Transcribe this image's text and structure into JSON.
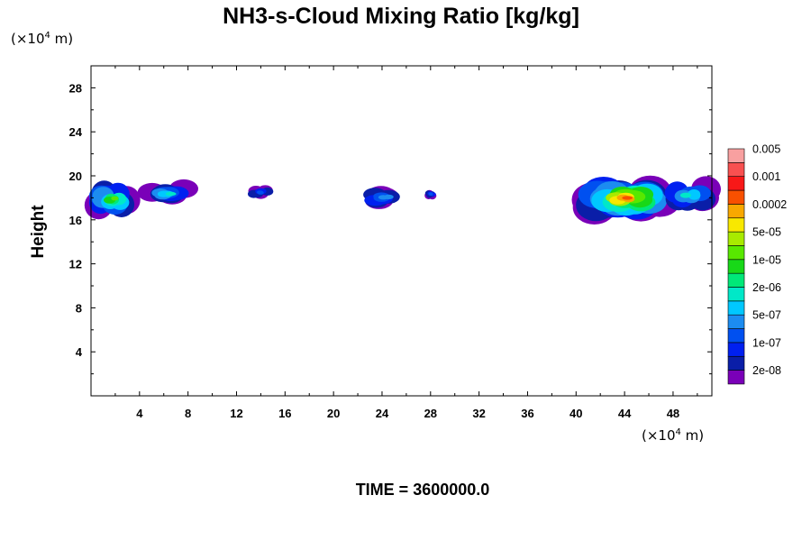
{
  "chart_data": {
    "type": "heatmap",
    "title": "NH3-s-Cloud Mixing Ratio [kg/kg]",
    "ylabel": "Height",
    "y_unit": {
      "prefix": "(×10",
      "exp": "4",
      "suffix": " m)"
    },
    "x_unit": {
      "prefix": "(×10",
      "exp": "4",
      "suffix": " m)"
    },
    "xlim": [
      0,
      51.2
    ],
    "ylim": [
      0,
      30
    ],
    "x_ticks": [
      4,
      8,
      12,
      16,
      20,
      24,
      28,
      32,
      36,
      40,
      44,
      48
    ],
    "y_ticks": [
      4,
      8,
      12,
      16,
      20,
      24,
      28
    ],
    "footer": "TIME = 3600000.0",
    "colorbar": {
      "colors": [
        "#7a00b8",
        "#0a1ea8",
        "#0020f0",
        "#0050f0",
        "#1c8cf0",
        "#00c8ff",
        "#00e8c8",
        "#00e878",
        "#18d818",
        "#58e800",
        "#a8ea00",
        "#f8e800",
        "#f8a800",
        "#f85000",
        "#f81818",
        "#f85050",
        "#f8a0a0"
      ],
      "labels": [
        "2e-08",
        "1e-07",
        "5e-07",
        "2e-06",
        "1e-05",
        "5e-05",
        "0.0002",
        "0.001",
        "0.005"
      ]
    },
    "cloud_regions": [
      {
        "x": [
          0,
          3.5
        ],
        "y": [
          16.5,
          19.2
        ],
        "max_level": 9
      },
      {
        "x": [
          4.6,
          8.2
        ],
        "y": [
          17.5,
          19.3
        ],
        "max_level": 6
      },
      {
        "x": [
          13.1,
          15.0
        ],
        "y": [
          18.0,
          19.0
        ],
        "max_level": 3
      },
      {
        "x": [
          22.5,
          26.0
        ],
        "y": [
          17.2,
          18.8
        ],
        "max_level": 4
      },
      {
        "x": [
          27.6,
          28.6
        ],
        "y": [
          18.0,
          18.7
        ],
        "max_level": 3
      },
      {
        "x": [
          40.6,
          47.5
        ],
        "y": [
          16.3,
          19.6
        ],
        "max_level": 13
      },
      {
        "x": [
          47.5,
          51.2
        ],
        "y": [
          17.0,
          19.5
        ],
        "max_level": 6
      }
    ]
  }
}
